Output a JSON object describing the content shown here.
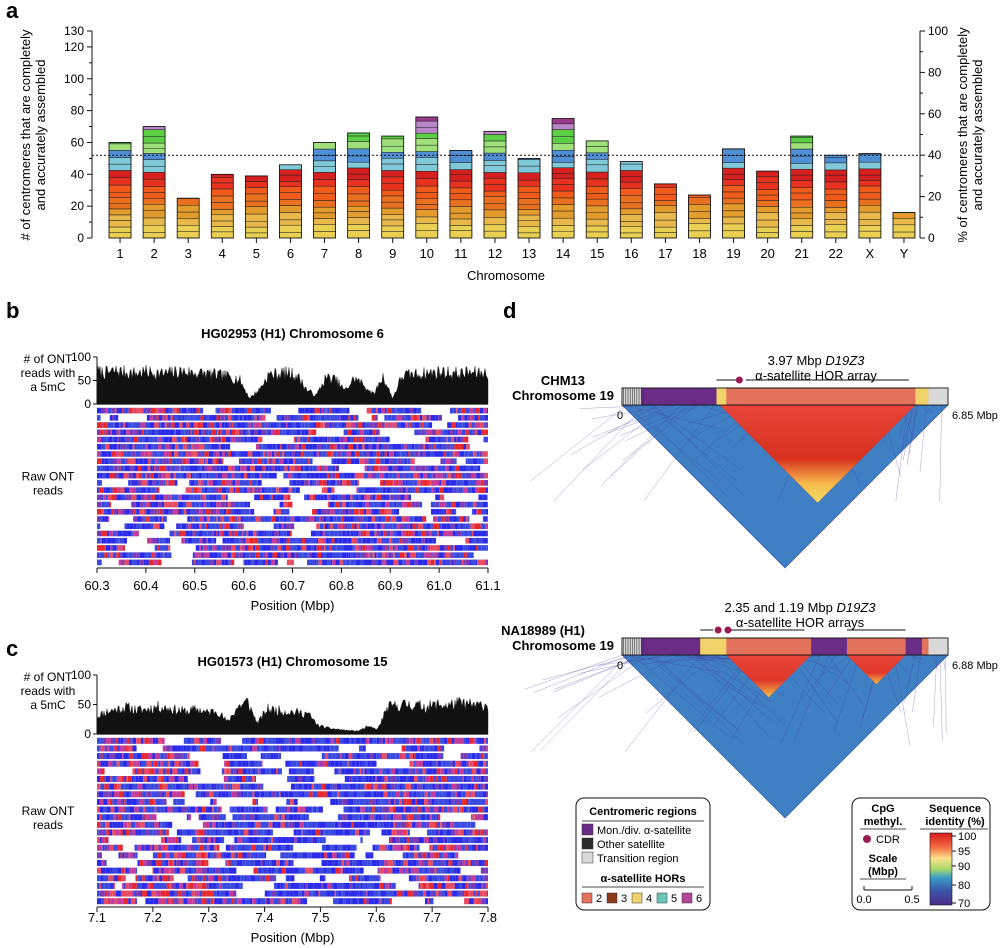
{
  "panel_labels": {
    "a": "a",
    "b": "b",
    "c": "c",
    "d": "d"
  },
  "chart_data": [
    {
      "panel": "a",
      "type": "bar",
      "stacked": true,
      "xlabel": "Chromosome",
      "ylabel_left_line1": "# of centromeres that are completely",
      "ylabel_left_line2": "and accurately assembled",
      "ylabel_right_line1": "% of centromeres that are completely",
      "ylabel_right_line2": "and accurately assembled",
      "ylim": [
        0,
        130
      ],
      "yticks": [
        0,
        20,
        40,
        60,
        80,
        100,
        120,
        130
      ],
      "ylim_right": [
        0,
        100
      ],
      "yticks_right": [
        0,
        20,
        40,
        60,
        80,
        100
      ],
      "reference_line": 52,
      "categories": [
        "1",
        "2",
        "3",
        "4",
        "5",
        "6",
        "7",
        "8",
        "9",
        "10",
        "11",
        "12",
        "13",
        "14",
        "15",
        "16",
        "17",
        "18",
        "19",
        "20",
        "21",
        "22",
        "X",
        "Y"
      ],
      "values": [
        60,
        70,
        25,
        40,
        39,
        46,
        60,
        66,
        64,
        76,
        55,
        67,
        50,
        75,
        61,
        48,
        34,
        27,
        56,
        42,
        64,
        52,
        53,
        16
      ],
      "stack_palette": [
        "#e9cf52",
        "#e9b84a",
        "#e39b2c",
        "#e8701f",
        "#f05a1a",
        "#e8321f",
        "#d61f1f",
        "#7fc9d9",
        "#4f8fd6",
        "#9fe07a",
        "#5ccf46",
        "#b987c9",
        "#9b3a8c"
      ]
    },
    {
      "panel": "b",
      "type": "area",
      "title": "HG02953 (H1) Chromosome 6",
      "ylabel_line1": "# of ONT",
      "ylabel_line2": "reads with",
      "ylabel_line3": "a 5mC",
      "ylim": [
        0,
        100
      ],
      "yticks": [
        0,
        50,
        100
      ],
      "xlim": [
        60.3,
        61.1
      ],
      "xticks": [
        "60.3",
        "60.4",
        "60.5",
        "60.6",
        "60.7",
        "60.8",
        "60.9",
        "61.0",
        "61.1"
      ],
      "xlabel": "Position (Mbp)",
      "reads_label_line1": "Raw ONT",
      "reads_label_line2": "reads",
      "coverage_profile": [
        68,
        66,
        70,
        67,
        65,
        68,
        66,
        64,
        67,
        69,
        66,
        65,
        63,
        60,
        58,
        50,
        12,
        30,
        62,
        64,
        66,
        60,
        30,
        18,
        56,
        52,
        28,
        55,
        40,
        20,
        58,
        12,
        60,
        62,
        64,
        66,
        68,
        66,
        64,
        67,
        65,
        66
      ],
      "read_rows": 22
    },
    {
      "panel": "c",
      "type": "area",
      "title": "HG01573 (H1) Chromosome 15",
      "ylabel_line1": "# of ONT",
      "ylabel_line2": "reads with",
      "ylabel_line3": "a 5mC",
      "ylim": [
        0,
        100
      ],
      "yticks": [
        0,
        50,
        100
      ],
      "xlim": [
        7.1,
        7.8
      ],
      "xticks": [
        "7.1",
        "7.2",
        "7.3",
        "7.4",
        "7.5",
        "7.6",
        "7.7",
        "7.8"
      ],
      "xlabel": "Position (Mbp)",
      "reads_label_line1": "Raw ONT",
      "reads_label_line2": "reads",
      "coverage_profile": [
        30,
        38,
        42,
        45,
        40,
        42,
        46,
        44,
        40,
        38,
        42,
        36,
        40,
        20,
        45,
        55,
        18,
        42,
        40,
        38,
        36,
        35,
        15,
        10,
        8,
        6,
        5,
        12,
        8,
        45,
        48,
        50,
        48,
        46,
        50,
        48,
        52,
        50,
        48,
        50
      ],
      "read_rows": 22
    },
    {
      "panel": "d",
      "type": "heatmap",
      "assemblies": [
        {
          "name_line1": "CHM13",
          "name_line2": "Chromosome 19",
          "array_size": "3.97 Mbp",
          "array_name": "D19Z3",
          "array_desc": "α-satellite HOR array",
          "start": "0",
          "end": "6.85 Mbp"
        },
        {
          "name_line1": "NA18989 (H1)",
          "name_line2": "Chromosome 19",
          "array_size": "2.35 and 1.19 Mbp",
          "array_name": "D19Z3",
          "array_desc": "α-satellite HOR arrays",
          "start": "0",
          "end": "6.88 Mbp"
        }
      ],
      "colorbar_ticks": [
        "100",
        "95",
        "90",
        "80",
        "70"
      ]
    }
  ],
  "legend_regions": {
    "title": "Centromeric regions",
    "items": [
      {
        "label": "Mon./div. α-satellite",
        "color": "#6a2d86"
      },
      {
        "label": "Other satellite",
        "color": "#2b2b2b"
      },
      {
        "label": "Transition region",
        "color": "#d9d9d9"
      }
    ],
    "hor_title": "α-satellite HORs",
    "hor_items": [
      {
        "label": "2",
        "color": "#e2725b"
      },
      {
        "label": "3",
        "color": "#8b3a1a"
      },
      {
        "label": "4",
        "color": "#f0d36a"
      },
      {
        "label": "5",
        "color": "#6ac6b8"
      },
      {
        "label": "6",
        "color": "#b0479a"
      }
    ]
  },
  "legend_methyl": {
    "cpg_line1": "CpG",
    "cpg_line2": "methyl.",
    "cdr_label": "CDR",
    "cdr_color": "#9b1b50",
    "scale_line1": "Scale",
    "scale_line2": "(Mbp)",
    "scale_min": "0.0",
    "scale_max": "0.5",
    "identity_line1": "Sequence",
    "identity_line2": "identity (%)"
  }
}
